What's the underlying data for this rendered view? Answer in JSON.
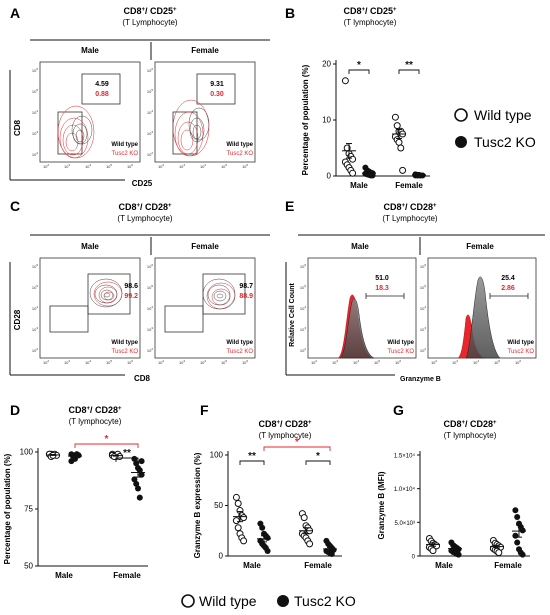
{
  "panels": {
    "A": {
      "letter": "A",
      "title": "CD8",
      "title_sup": "+",
      "title_mid": "/ CD25",
      "title_sup2": "+",
      "subtitle": "(T Lymphocyte)",
      "groups": [
        "Male",
        "Female"
      ],
      "xlabel": "CD25",
      "ylabel": "CD8",
      "gate_values": [
        {
          "wt": "4.59",
          "ko": "0.88"
        },
        {
          "wt": "9.31",
          "ko": "0.30"
        }
      ],
      "legend_wt": "Wild type",
      "legend_ko": "Tusc2 KO"
    },
    "B": {
      "letter": "B",
      "title": "CD8",
      "title_sup": "+",
      "title_mid": "/ CD25",
      "title_sup2": "+",
      "subtitle": "(T lymphocyte)"
    },
    "C": {
      "letter": "C",
      "title": "CD8",
      "title_sup": "+",
      "title_mid": "/ CD28",
      "title_sup2": "+",
      "subtitle": "(T Lymphocyte)",
      "groups": [
        "Male",
        "Female"
      ],
      "xlabel": "CD8",
      "ylabel": "CD28",
      "gate_values": [
        {
          "wt": "98.6",
          "ko": "99.2"
        },
        {
          "wt": "98.7",
          "ko": "88.9"
        }
      ],
      "legend_wt": "Wild type",
      "legend_ko": "Tusc2 KO"
    },
    "E": {
      "letter": "E",
      "title": "CD8",
      "title_sup": "+",
      "title_mid": "/ CD28",
      "title_sup2": "+",
      "subtitle": "(T Lymphocyte)",
      "groups": [
        "Male",
        "Female"
      ],
      "xlabel": "Granzyme B",
      "ylabel": "Relative Cell Count",
      "gate_values": [
        {
          "wt": "51.0",
          "ko": "18.3"
        },
        {
          "wt": "25.4",
          "ko": "2.86"
        }
      ],
      "legend_wt": "Wild type",
      "legend_ko": "Tusc2 KO"
    },
    "D": {
      "letter": "D",
      "title": "CD8",
      "title_sup": "+",
      "title_mid": "/ CD28",
      "title_sup2": "+",
      "subtitle": "(T lymphocyte)"
    },
    "F": {
      "letter": "F",
      "title": "CD8",
      "title_sup": "+",
      "title_mid": "/ CD28",
      "title_sup2": "+",
      "subtitle": "(T lymphocyte)"
    },
    "G": {
      "letter": "G",
      "title": "CD8",
      "title_sup": "+",
      "title_mid": "/ CD28",
      "title_sup2": "+",
      "subtitle": "(T lymphocyte)"
    }
  },
  "flow_tick_labels": [
    "10",
    "2",
    "10",
    "3",
    "10",
    "4",
    "10",
    "5",
    "10",
    "6"
  ],
  "legend_right": {
    "wt": "Wild type",
    "ko": "Tusc2 KO"
  },
  "legend_bottom": {
    "wt": "Wild type",
    "ko": "Tusc2 KO"
  },
  "colors": {
    "ko_red": "#e8262b",
    "wt_gray": "#555555",
    "black": "#111111"
  },
  "chart_data": [
    {
      "id": "B",
      "type": "scatter",
      "ylabel": "Percentage of population (%)",
      "categories": [
        "Male",
        "Female"
      ],
      "ylim": [
        0,
        20
      ],
      "yticks": [
        0,
        10,
        20
      ],
      "series": [
        {
          "name": "Wild type",
          "marker": "open",
          "groups": [
            [
              17,
              5,
              4,
              3.5,
              3,
              2.5,
              2,
              1.5,
              1,
              0.5
            ],
            [
              10.5,
              9,
              8,
              8,
              7.5,
              7,
              6.5,
              6,
              5,
              1
            ]
          ]
        },
        {
          "name": "Tusc2 KO",
          "marker": "filled",
          "groups": [
            [
              1.5,
              1,
              0.8,
              0.6,
              0.5,
              0.4,
              0.3,
              0.2,
              0.1,
              0.1
            ],
            [
              0.3,
              0.2,
              0.2,
              0.1,
              0.1,
              0.1,
              0.1,
              0.1
            ]
          ]
        }
      ],
      "means": [
        [
          4.5,
          0.5
        ],
        [
          7.5,
          0.2
        ]
      ],
      "sem": [
        [
          1.3,
          0.15
        ],
        [
          0.8,
          0.05
        ]
      ],
      "sig": [
        {
          "group": 0,
          "label": "*",
          "color": "black"
        },
        {
          "group": 1,
          "label": "**",
          "color": "black"
        }
      ]
    },
    {
      "id": "D",
      "type": "scatter",
      "ylabel": "Percentage of population (%)",
      "categories": [
        "Male",
        "Female"
      ],
      "ylim": [
        50,
        100
      ],
      "yticks": [
        50,
        75,
        100
      ],
      "series": [
        {
          "name": "Wild type",
          "marker": "open",
          "groups": [
            [
              99,
              99,
              98.5,
              99,
              98.5,
              99,
              98,
              98.5
            ],
            [
              99,
              98.5,
              98,
              99,
              98,
              98.5,
              98
            ]
          ]
        },
        {
          "name": "Tusc2 KO",
          "marker": "filled",
          "groups": [
            [
              99,
              98,
              97,
              99,
              98.5,
              96,
              98,
              97.5,
              99
            ],
            [
              97,
              95,
              93,
              92,
              90,
              88,
              86,
              84,
              80,
              96
            ]
          ]
        }
      ],
      "means": [
        [
          98.7,
          98.2
        ],
        [
          98.4,
          91
        ]
      ],
      "sem": [
        [
          0.2,
          0.4
        ],
        [
          0.2,
          2
        ]
      ],
      "sig": [
        {
          "group": 1,
          "label": "**",
          "color": "black"
        }
      ],
      "sig_across": {
        "label": "*",
        "color": "red"
      }
    },
    {
      "id": "F",
      "type": "scatter",
      "ylabel": "Granzyme B expression (%)",
      "categories": [
        "Male",
        "Female"
      ],
      "ylim": [
        0,
        100
      ],
      "yticks": [
        0,
        50,
        100
      ],
      "series": [
        {
          "name": "Wild type",
          "marker": "open",
          "groups": [
            [
              58,
              52,
              45,
              40,
              38,
              35,
              28,
              22,
              18,
              15
            ],
            [
              42,
              38,
              30,
              28,
              25,
              22,
              20,
              18,
              15,
              12
            ]
          ]
        },
        {
          "name": "Tusc2 KO",
          "marker": "filled",
          "groups": [
            [
              32,
              28,
              22,
              20,
              18,
              15,
              12,
              10,
              8,
              5
            ],
            [
              15,
              12,
              10,
              8,
              6,
              5,
              4,
              3,
              2
            ]
          ]
        }
      ],
      "means": [
        [
          39,
          17
        ],
        [
          25,
          7
        ]
      ],
      "sem": [
        [
          5,
          3
        ],
        [
          3,
          1.5
        ]
      ],
      "sig": [
        {
          "group": 0,
          "label": "**",
          "color": "black"
        },
        {
          "group": 1,
          "label": "*",
          "color": "black"
        }
      ],
      "sig_across": {
        "label": "*",
        "color": "red"
      }
    },
    {
      "id": "G",
      "type": "scatter",
      "ylabel": "Granzyme B (MFI)",
      "categories": [
        "Male",
        "Female"
      ],
      "ylim": [
        0,
        15000
      ],
      "yticks": [
        0,
        5000,
        10000,
        15000
      ],
      "ytick_labels": [
        "0",
        "5.0×10³",
        "1.0×10⁴",
        "1.5×10⁴"
      ],
      "series": [
        {
          "name": "Wild type",
          "marker": "open",
          "groups": [
            [
              2600,
              2200,
              1900,
              1700,
              1500,
              1300,
              1100,
              800
            ],
            [
              2300,
              1900,
              1700,
              1500,
              1300,
              1100,
              900,
              700,
              500
            ]
          ]
        },
        {
          "name": "Tusc2 KO",
          "marker": "filled",
          "groups": [
            [
              2000,
              1600,
              1400,
              1200,
              1000,
              800,
              600,
              500,
              300,
              200
            ],
            [
              6800,
              5800,
              4800,
              4300,
              3800,
              3000,
              2000,
              1000,
              500,
              200
            ]
          ]
        }
      ],
      "means": [
        [
          1700,
          1100
        ],
        [
          1400,
          3700
        ]
      ],
      "sem": [
        [
          250,
          200
        ],
        [
          200,
          900
        ]
      ]
    }
  ]
}
